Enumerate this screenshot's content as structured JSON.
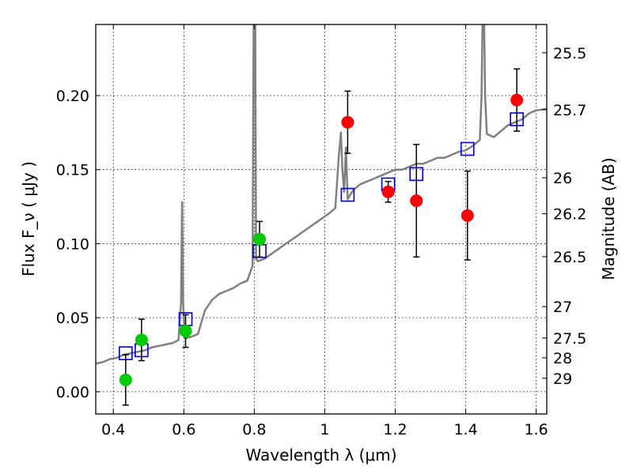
{
  "chart_data": {
    "type": "scatter",
    "xlabel": "Wavelength  λ (μm)",
    "ylabel_left": "Flux  F_ν  ( μJy )",
    "ylabel_right": "Magnitude (AB)",
    "xlim": [
      0.35,
      1.63
    ],
    "ylim": [
      -0.015,
      0.248
    ],
    "x_ticks": [
      0.4,
      0.6,
      0.8,
      1.0,
      1.2,
      1.4,
      1.6
    ],
    "x_tick_labels": [
      "0.4",
      "0.6",
      "0.8",
      "1",
      "1.2",
      "1.4",
      "1.6"
    ],
    "y_ticks": [
      0.0,
      0.05,
      0.1,
      0.15,
      0.2
    ],
    "y_tick_labels": [
      "0.00",
      "0.05",
      "0.10",
      "0.15",
      "0.20"
    ],
    "mag_ticks": [
      {
        "label": "25.5",
        "flux": 0.2289
      },
      {
        "label": "25.7",
        "flux": 0.1905
      },
      {
        "label": "26",
        "flux": 0.1445
      },
      {
        "label": "26.2",
        "flux": 0.1202
      },
      {
        "label": "26.5",
        "flux": 0.0912
      },
      {
        "label": "27",
        "flux": 0.0575
      },
      {
        "label": "27.5",
        "flux": 0.0363
      },
      {
        "label": "28",
        "flux": 0.0229
      },
      {
        "label": "29",
        "flux": 0.0091
      }
    ],
    "grid": true,
    "series": [
      {
        "name": "model spectrum",
        "kind": "line",
        "color": "#808080",
        "x": [
          0.35,
          0.37,
          0.39,
          0.41,
          0.43,
          0.45,
          0.47,
          0.49,
          0.51,
          0.53,
          0.55,
          0.57,
          0.585,
          0.592,
          0.595,
          0.598,
          0.603,
          0.62,
          0.64,
          0.66,
          0.68,
          0.7,
          0.72,
          0.74,
          0.76,
          0.78,
          0.795,
          0.799,
          0.802,
          0.805,
          0.81,
          0.83,
          0.86,
          0.89,
          0.92,
          0.95,
          0.98,
          1.01,
          1.03,
          1.04,
          1.046,
          1.05,
          1.055,
          1.06,
          1.065,
          1.07,
          1.075,
          1.08,
          1.09,
          1.1,
          1.12,
          1.14,
          1.16,
          1.18,
          1.2,
          1.22,
          1.24,
          1.26,
          1.28,
          1.3,
          1.32,
          1.34,
          1.36,
          1.38,
          1.4,
          1.42,
          1.44,
          1.445,
          1.45,
          1.455,
          1.46,
          1.48,
          1.5,
          1.52,
          1.54,
          1.56,
          1.58,
          1.6,
          1.63
        ],
        "y": [
          0.019,
          0.02,
          0.022,
          0.023,
          0.025,
          0.026,
          0.027,
          0.028,
          0.03,
          0.031,
          0.032,
          0.033,
          0.035,
          0.06,
          0.128,
          0.06,
          0.036,
          0.037,
          0.039,
          0.055,
          0.062,
          0.066,
          0.068,
          0.07,
          0.073,
          0.075,
          0.085,
          0.29,
          0.29,
          0.09,
          0.088,
          0.09,
          0.095,
          0.1,
          0.105,
          0.11,
          0.115,
          0.12,
          0.124,
          0.16,
          0.175,
          0.15,
          0.135,
          0.165,
          0.13,
          0.132,
          0.134,
          0.136,
          0.138,
          0.14,
          0.142,
          0.144,
          0.146,
          0.148,
          0.15,
          0.15,
          0.152,
          0.154,
          0.154,
          0.156,
          0.158,
          0.158,
          0.16,
          0.162,
          0.163,
          0.166,
          0.17,
          0.2,
          0.29,
          0.2,
          0.174,
          0.172,
          0.176,
          0.18,
          0.182,
          0.184,
          0.188,
          0.19,
          0.191
        ]
      },
      {
        "name": "model photometry",
        "kind": "open-square",
        "color": "#0000cc",
        "x": [
          0.435,
          0.48,
          0.605,
          0.815,
          1.065,
          1.18,
          1.26,
          1.405,
          1.545
        ],
        "y": [
          0.026,
          0.028,
          0.049,
          0.095,
          0.133,
          0.14,
          0.147,
          0.164,
          0.184
        ]
      },
      {
        "name": "optical observations",
        "kind": "filled-circle",
        "color": "#00cc00",
        "x": [
          0.435,
          0.48,
          0.605,
          0.815
        ],
        "y": [
          0.008,
          0.035,
          0.041,
          0.103
        ],
        "err": [
          0.017,
          0.014,
          0.011,
          0.012
        ]
      },
      {
        "name": "NIR observations",
        "kind": "filled-circle",
        "color": "#ff0000",
        "x": [
          1.065,
          1.18,
          1.26,
          1.405,
          1.545
        ],
        "y": [
          0.182,
          0.135,
          0.129,
          0.119,
          0.197
        ],
        "err": [
          0.021,
          0.007,
          0.038,
          0.03,
          0.021
        ]
      }
    ]
  }
}
